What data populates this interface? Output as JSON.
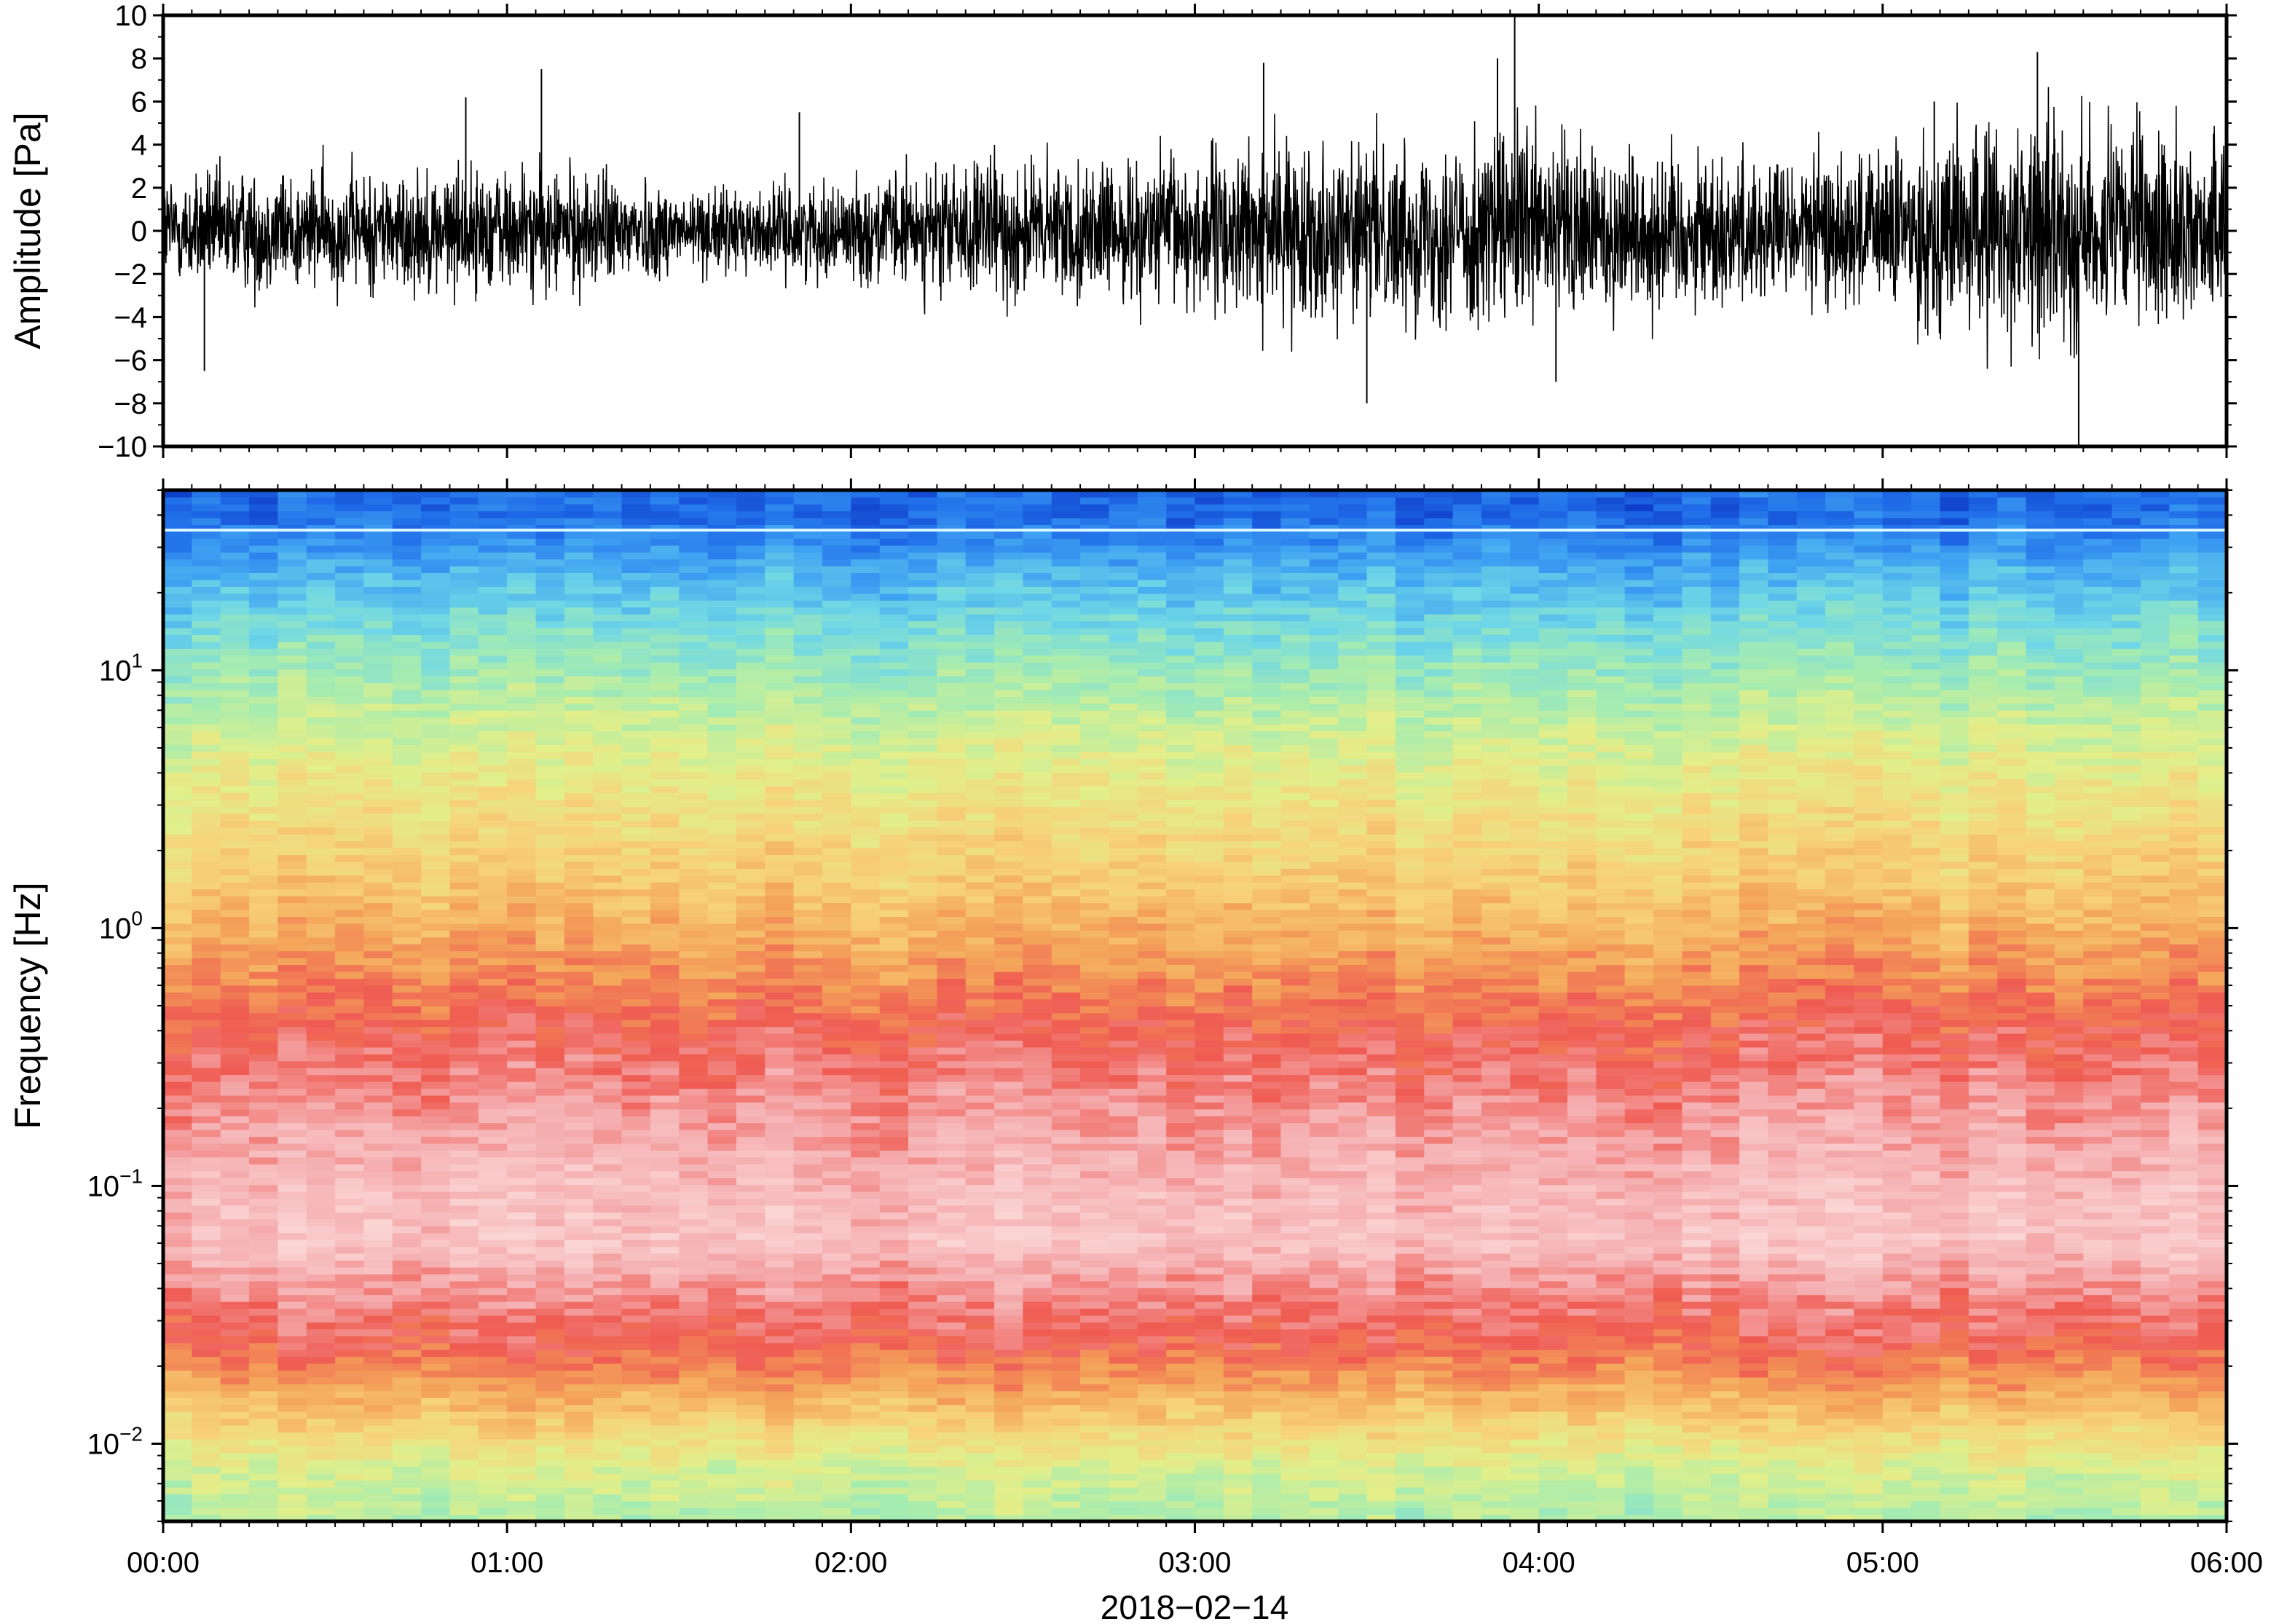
{
  "chart_data": [
    {
      "type": "line",
      "ylabel": "Amplitude [Pa]",
      "ylim": [
        -10,
        10
      ],
      "y_ticks": [
        "10",
        "8",
        "6",
        "4",
        "2",
        "0",
        "−2",
        "−4",
        "−6",
        "−8",
        "−10"
      ],
      "y_tick_values": [
        10,
        8,
        6,
        4,
        2,
        0,
        -2,
        -4,
        -6,
        -8,
        -10
      ],
      "x_range_hours": [
        0,
        6
      ],
      "series": [
        {
          "color": "#000000",
          "envelope_hours": [
            0,
            0.25,
            0.5,
            0.75,
            1.0,
            1.25,
            1.5,
            1.75,
            2.0,
            2.25,
            2.5,
            2.75,
            3.0,
            3.25,
            3.5,
            3.75,
            4.0,
            4.25,
            4.5,
            4.75,
            5.0,
            5.25,
            5.5,
            5.75,
            6.0
          ],
          "envelope_amplitude": [
            2.0,
            2.2,
            2.1,
            2.2,
            2.3,
            2.1,
            1.6,
            1.5,
            1.7,
            2.3,
            2.6,
            2.3,
            2.9,
            3.1,
            3.0,
            3.4,
            3.6,
            3.1,
            2.8,
            2.6,
            3.0,
            3.8,
            4.0,
            3.6,
            2.9
          ],
          "peaks_hours": [
            0.12,
            0.88,
            1.1,
            1.85,
            3.2,
            3.5,
            3.88,
            3.93,
            4.05,
            5.15,
            5.45,
            5.57
          ],
          "peaks_values": [
            -6.5,
            6.2,
            7.5,
            5.5,
            7.8,
            -8.0,
            8.0,
            10.0,
            -7.0,
            6.0,
            8.3,
            -10.0
          ]
        }
      ]
    },
    {
      "type": "heatmap",
      "ylabel": "Frequency [Hz]",
      "xlabel": "2018−02−14",
      "y_scale": "log",
      "ylim": [
        0.005,
        50
      ],
      "y_ticks": [
        {
          "value": 10,
          "mantissa": "10",
          "exp": "1"
        },
        {
          "value": 1,
          "mantissa": "10",
          "exp": "0"
        },
        {
          "value": 0.1,
          "mantissa": "10",
          "exp": "−1"
        },
        {
          "value": 0.01,
          "mantissa": "10",
          "exp": "−2"
        }
      ],
      "x_ticks": [
        "00:00",
        "01:00",
        "02:00",
        "03:00",
        "04:00",
        "05:00",
        "06:00"
      ],
      "x_tick_values_hours": [
        0,
        1,
        2,
        3,
        4,
        5,
        6
      ],
      "colormap": "relative power, low to high",
      "colorscale": [
        "#0a2fbf",
        "#1f6be8",
        "#3fa3f2",
        "#6fd7e6",
        "#a6ecb0",
        "#e2ef8a",
        "#f7d27a",
        "#f4a55a",
        "#ef5b52",
        "#f5aeb0",
        "#fbd4d4"
      ],
      "spectral_profile": {
        "frequency_hz": [
          0.005,
          0.008,
          0.012,
          0.017,
          0.025,
          0.035,
          0.06,
          0.1,
          0.2,
          0.4,
          0.7,
          1.5,
          4,
          8,
          15,
          25,
          40
        ],
        "level": [
          0.42,
          0.48,
          0.6,
          0.7,
          0.8,
          0.84,
          0.95,
          0.93,
          0.87,
          0.8,
          0.72,
          0.62,
          0.52,
          0.42,
          0.32,
          0.22,
          0.1
        ]
      },
      "annotations": [
        {
          "type": "horizontal_line",
          "frequency_hz": 35,
          "color": "#d8f7ff"
        }
      ]
    }
  ]
}
